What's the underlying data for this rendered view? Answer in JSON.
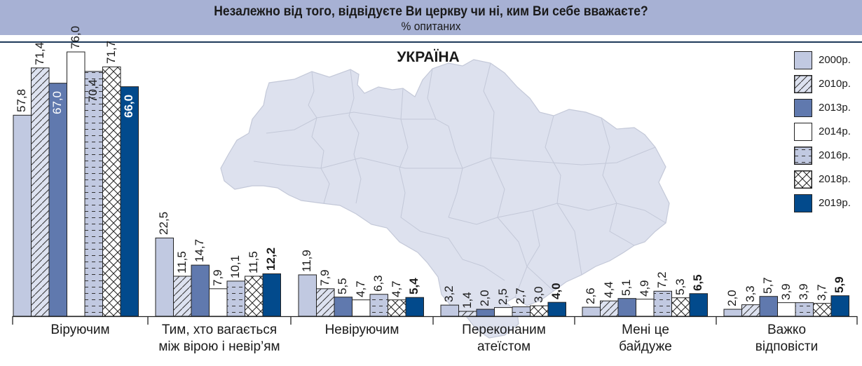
{
  "header": {
    "title": "Незалежно від того, відвідуєте Ви церкву чи ні, ким Ви себе вважаєте?",
    "subtitle": "% опитаних"
  },
  "map": {
    "title": "УКРАЇНА"
  },
  "colors": {
    "header_bg": "#a7b1d4",
    "y2000": "#c1c9e1",
    "y2010_bg": "#dde2f0",
    "y2013": "#6079ae",
    "y2014": "#ffffff",
    "y2016": "#c1c9e1",
    "y2018": "#ffffff",
    "y2019": "#024a8c",
    "map_fill": "#dde1ee"
  },
  "legend": [
    {
      "label": "2000р.",
      "pattern": "solid-light"
    },
    {
      "label": "2010р.",
      "pattern": "diagonal"
    },
    {
      "label": "2013р.",
      "pattern": "solid-mid"
    },
    {
      "label": "2014р.",
      "pattern": "white"
    },
    {
      "label": "2016р.",
      "pattern": "dashes"
    },
    {
      "label": "2018р.",
      "pattern": "crosshatch"
    },
    {
      "label": "2019р.",
      "pattern": "solid-dark"
    }
  ],
  "categories": [
    {
      "label_lines": [
        "Віруючим"
      ]
    },
    {
      "label_lines": [
        "Тим, хто вагається",
        "між вірою і невір’ям"
      ]
    },
    {
      "label_lines": [
        "Невіруючим"
      ]
    },
    {
      "label_lines": [
        "Переконаним",
        "атеїстом"
      ]
    },
    {
      "label_lines": [
        "Мені це",
        "байдуже"
      ]
    },
    {
      "label_lines": [
        "Важко",
        "відповісти"
      ]
    }
  ],
  "chart_data": {
    "type": "bar",
    "title": "Незалежно від того, відвідуєте Ви церкву чи ні, ким Ви себе вважаєте?",
    "subtitle": "% опитаних",
    "annotation": "УКРАЇНА",
    "xlabel": "",
    "ylabel": "% опитаних",
    "ylim": [
      0,
      80
    ],
    "grid": false,
    "legend_position": "right",
    "categories": [
      "Віруючим",
      "Тим, хто вагається між вірою і невір’ям",
      "Невіруючим",
      "Переконаним атеїстом",
      "Мені це байдуже",
      "Важко відповісти"
    ],
    "series": [
      {
        "name": "2000р.",
        "values": [
          57.8,
          22.5,
          11.9,
          3.2,
          2.6,
          2.0
        ]
      },
      {
        "name": "2010р.",
        "values": [
          71.4,
          11.5,
          7.9,
          1.4,
          4.4,
          3.3
        ]
      },
      {
        "name": "2013р.",
        "values": [
          67.0,
          14.7,
          5.5,
          2.0,
          5.1,
          5.7
        ]
      },
      {
        "name": "2014р.",
        "values": [
          76.0,
          7.9,
          4.7,
          2.5,
          4.9,
          3.9
        ]
      },
      {
        "name": "2016р.",
        "values": [
          70.4,
          10.1,
          6.3,
          2.7,
          7.2,
          3.9
        ]
      },
      {
        "name": "2018р.",
        "values": [
          71.7,
          11.5,
          4.7,
          3.0,
          5.3,
          3.7
        ]
      },
      {
        "name": "2019р.",
        "values": [
          66.0,
          12.2,
          5.4,
          4.0,
          6.5,
          5.9
        ]
      }
    ]
  }
}
